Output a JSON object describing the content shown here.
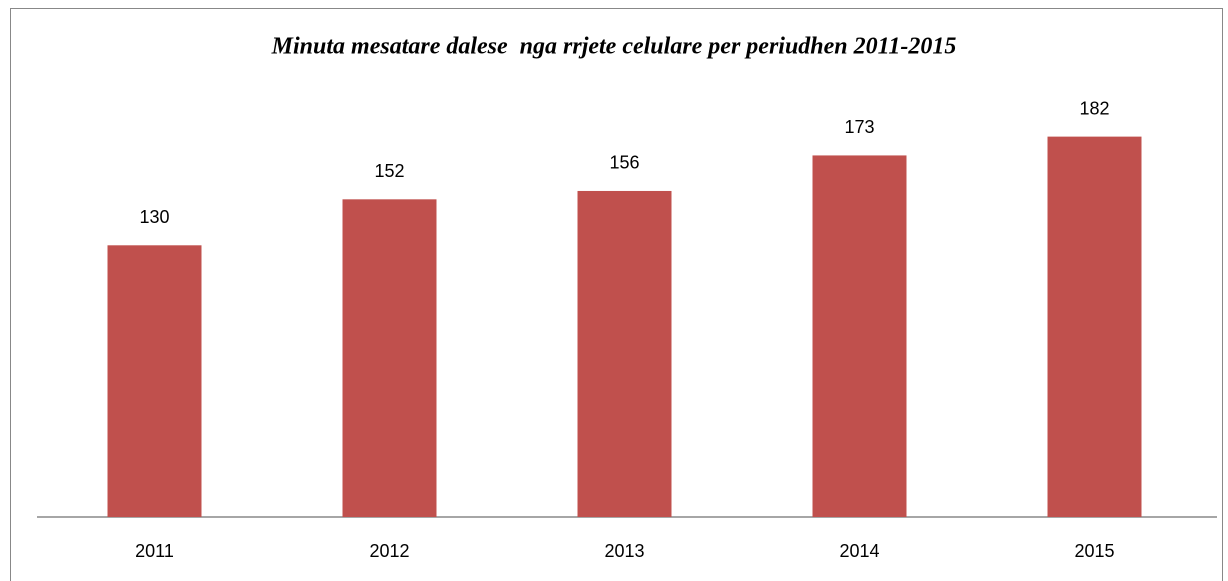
{
  "chart_data": {
    "type": "bar",
    "title": "Minuta mesatare dalese  nga rrjete celulare per periudhen 2011-2015",
    "categories": [
      "2011",
      "2012",
      "2013",
      "2014",
      "2015"
    ],
    "values": [
      130,
      152,
      156,
      173,
      182
    ],
    "color": "#c0504d",
    "ylim": [
      0,
      200
    ],
    "grid": false
  }
}
